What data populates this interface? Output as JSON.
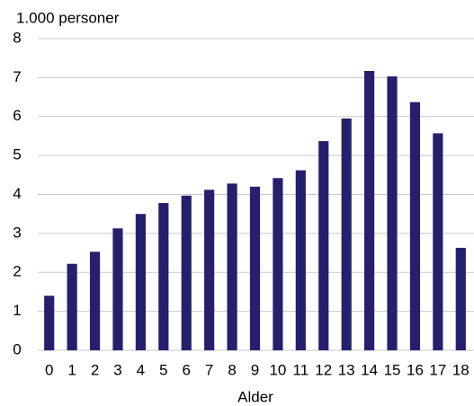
{
  "chart_data": {
    "type": "bar",
    "y_axis_label": "1.000 personer",
    "x_axis_label": "Alder",
    "categories": [
      "0",
      "1",
      "2",
      "3",
      "4",
      "5",
      "6",
      "7",
      "8",
      "9",
      "10",
      "11",
      "12",
      "13",
      "14",
      "15",
      "16",
      "17",
      "18"
    ],
    "values": [
      1.4,
      2.22,
      2.53,
      3.13,
      3.5,
      3.78,
      3.97,
      4.12,
      4.28,
      4.2,
      4.42,
      4.62,
      5.37,
      5.95,
      7.17,
      7.03,
      6.37,
      5.57,
      2.63
    ],
    "color": "#25206e",
    "ylim": [
      0,
      8
    ],
    "yticks": [
      0,
      1,
      2,
      3,
      4,
      5,
      6,
      7,
      8
    ],
    "grid": true
  }
}
